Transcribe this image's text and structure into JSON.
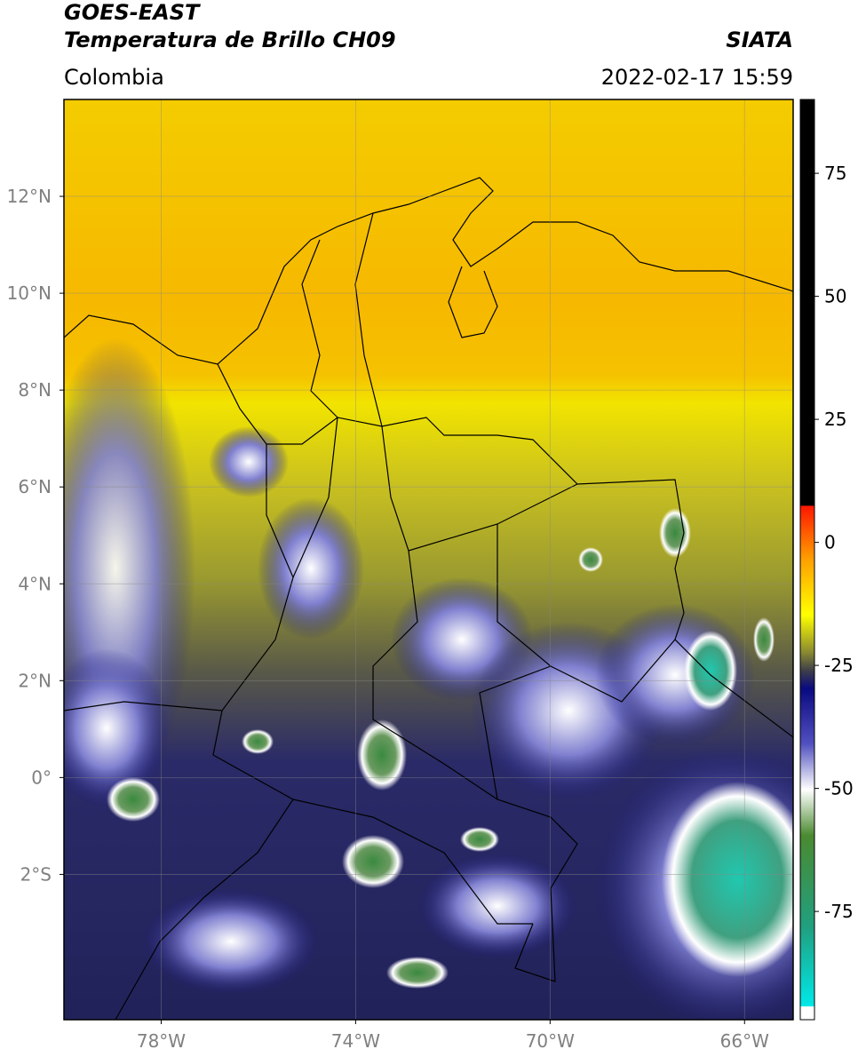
{
  "header": {
    "title_line1": "GOES-EAST",
    "title_line2": "Temperatura de Brillo CH09",
    "source": "SIATA",
    "region": "Colombia",
    "datetime": "2022-02-17 15:59"
  },
  "map": {
    "lon_range": [
      -80,
      -65
    ],
    "lat_range": [
      -5,
      14
    ],
    "lat_ticks": [
      {
        "value": 12,
        "label": "12°N"
      },
      {
        "value": 10,
        "label": "10°N"
      },
      {
        "value": 8,
        "label": "8°N"
      },
      {
        "value": 6,
        "label": "6°N"
      },
      {
        "value": 4,
        "label": "4°N"
      },
      {
        "value": 2,
        "label": "2°N"
      },
      {
        "value": 0,
        "label": "0°"
      },
      {
        "value": -2,
        "label": "2°S"
      }
    ],
    "lon_ticks": [
      {
        "value": -78,
        "label": "78°W"
      },
      {
        "value": -74,
        "label": "74°W"
      },
      {
        "value": -70,
        "label": "70°W"
      },
      {
        "value": -66,
        "label": "66°W"
      }
    ]
  },
  "colorbar": {
    "range": [
      -97,
      90
    ],
    "ticks": [
      75,
      50,
      25,
      0,
      -25,
      -50,
      -75
    ]
  }
}
